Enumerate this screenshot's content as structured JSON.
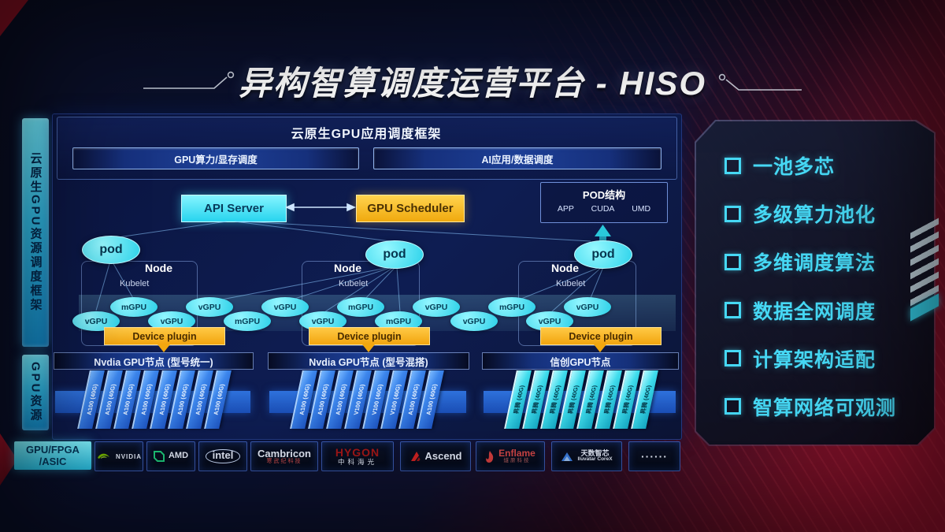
{
  "title": "异构智算调度运营平台 - HISO",
  "colors": {
    "accent_cyan": "#3fd6f0",
    "accent_orange": "#f5b31a",
    "card_blue": "#2f72dd",
    "bg_red": "#a01330",
    "panel_navy": "#0e1d52"
  },
  "sidebar": {
    "top": "云原生GPU资源调度框架",
    "bottom": "GPU资源"
  },
  "framework": {
    "title": "云原生GPU应用调度框架",
    "left_bar": "GPU算力/显存调度",
    "right_bar": "AI应用/数据调度"
  },
  "scheduler": {
    "api_server": "API Server",
    "gpu_scheduler": "GPU Scheduler"
  },
  "pod_structure": {
    "title": "POD结构",
    "items": [
      "APP",
      "CUDA",
      "UMD"
    ]
  },
  "nodes": [
    {
      "pod": "pod",
      "node": "Node",
      "kubelet": "Kubelet",
      "device_plugin": "Device plugin"
    },
    {
      "pod": "pod",
      "node": "Node",
      "kubelet": "Kubelet",
      "device_plugin": "Device plugin"
    },
    {
      "pod": "pod",
      "node": "Node",
      "kubelet": "Kubelet",
      "device_plugin": "Device plugin"
    }
  ],
  "gpu_ellipses": [
    {
      "label": "vGPU",
      "row": "bottom"
    },
    {
      "label": "mGPU",
      "row": "top"
    },
    {
      "label": "vGPU",
      "row": "bottom"
    },
    {
      "label": "vGPU",
      "row": "top"
    },
    {
      "label": "mGPU",
      "row": "bottom"
    },
    {
      "label": "vGPU",
      "row": "top"
    },
    {
      "label": "vGPU",
      "row": "bottom"
    },
    {
      "label": "mGPU",
      "row": "top"
    },
    {
      "label": "mGPU",
      "row": "bottom"
    },
    {
      "label": "vGPU",
      "row": "top"
    },
    {
      "label": "vGPU",
      "row": "bottom"
    },
    {
      "label": "mGPU",
      "row": "top"
    },
    {
      "label": "vGPU",
      "row": "bottom"
    },
    {
      "label": "vGPU",
      "row": "top"
    }
  ],
  "gpu_groups": [
    {
      "header": "Nvdia GPU节点 (型号统一)",
      "style": "blue",
      "cards": [
        "A100 (40G)",
        "A100 (40G)",
        "A100 (40G)",
        "A100 (40G)",
        "A100 (40G)",
        "A100 (40G)",
        "A100 (40G)",
        "A100 (40G)"
      ]
    },
    {
      "header": "Nvdia GPU节点 (型号混搭)",
      "style": "blue",
      "cards": [
        "A100 (40G)",
        "A100 (40G)",
        "A100 (40G)",
        "V100 (40G)",
        "V100 (40G)",
        "V100 (40G)",
        "A100 (40G)",
        "A100 (40G)"
      ]
    },
    {
      "header": "信创GPU节点",
      "style": "cyan",
      "cards": [
        "昇腾 (40G)",
        "昇腾 (40G)",
        "昇腾 (40G)",
        "昇腾 (40G)",
        "昇腾 (40G)",
        "昇腾 (40G)",
        "昇腾 (40G)",
        "昇腾 (40G)"
      ]
    }
  ],
  "hardware_bar": {
    "label_line1": "GPU/FPGA",
    "label_line2": "/ASIC",
    "vendors": [
      {
        "id": "nvidia",
        "icon": "nvidia-logo-icon",
        "name": "NVIDIA",
        "sub": ""
      },
      {
        "id": "amd",
        "icon": "amd-logo-icon",
        "name": "AMD",
        "sub": ""
      },
      {
        "id": "intel",
        "icon": "intel-logo-icon",
        "name": "intel",
        "sub": ""
      },
      {
        "id": "cambricon",
        "icon": "cambricon-logo-icon",
        "name": "Cambricon",
        "sub": "寒武纪科技"
      },
      {
        "id": "hygon",
        "icon": "hygon-logo-icon",
        "name": "HYGON",
        "sub": "中科海光"
      },
      {
        "id": "ascend",
        "icon": "ascend-logo-icon",
        "name": "Ascend",
        "sub": ""
      },
      {
        "id": "enflame",
        "icon": "enflame-logo-icon",
        "name": "Enflame",
        "sub": "燧原科技"
      },
      {
        "id": "iluvatar",
        "icon": "iluvatar-logo-icon",
        "name": "天数智芯",
        "sub": "Iluvatar CoreX"
      },
      {
        "id": "more",
        "icon": "ellipsis-icon",
        "name": "······",
        "sub": ""
      }
    ]
  },
  "features": [
    "一池多芯",
    "多级算力池化",
    "多维调度算法",
    "数据全网调度",
    "计算架构适配",
    "智算网络可观测"
  ]
}
